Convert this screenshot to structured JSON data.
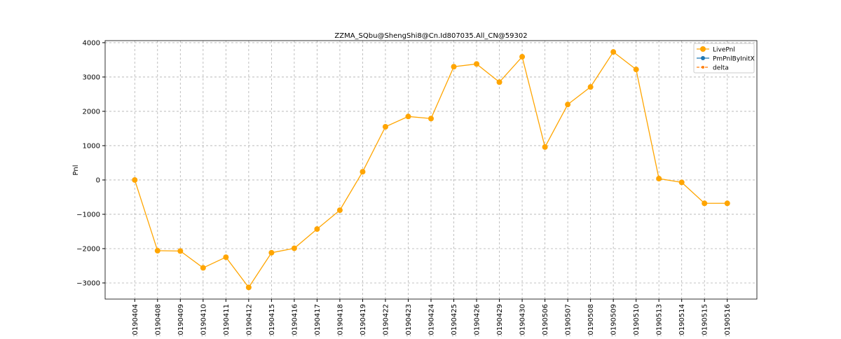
{
  "chart_data": {
    "type": "line",
    "title": "ZZMA_SQbu@ShengShi8@Cn.Id807035.All_CN@59302",
    "y_label": "Pnl",
    "categories": [
      "20190404",
      "20190408",
      "20190409",
      "20190410",
      "20190411",
      "20190412",
      "20190415",
      "20190416",
      "20190417",
      "20190418",
      "20190419",
      "20190422",
      "20190423",
      "20190424",
      "20190425",
      "20190426",
      "20190429",
      "20190430",
      "20190506",
      "20190507",
      "20190508",
      "20190509",
      "20190510",
      "20190513",
      "20190514",
      "20190515",
      "20190516"
    ],
    "series": [
      {
        "name": "LivePnl",
        "color": "#ffa500",
        "values": [
          0,
          -2060,
          -2070,
          -2560,
          -2250,
          -3130,
          -2120,
          -1990,
          -1430,
          -880,
          240,
          1550,
          1850,
          1790,
          3300,
          3380,
          2850,
          3590,
          960,
          2200,
          2710,
          3730,
          3220,
          40,
          -70,
          -680,
          -680
        ]
      },
      {
        "name": "PmPnlByInitX",
        "color": "#1f77b4",
        "values": [
          null,
          null,
          null,
          null,
          null,
          null,
          null,
          null,
          null,
          null,
          null,
          null,
          null,
          null,
          null,
          null,
          null,
          null,
          null,
          null,
          null,
          null,
          null,
          null,
          null,
          null,
          null
        ]
      },
      {
        "name": "delta",
        "color": "#ff7f0e",
        "values": [
          null,
          null,
          null,
          null,
          null,
          null,
          null,
          null,
          null,
          null,
          null,
          null,
          null,
          null,
          null,
          null,
          null,
          null,
          null,
          null,
          null,
          null,
          null,
          null,
          null,
          null,
          null
        ]
      }
    ],
    "ylim": [
      -3470,
      4060
    ],
    "yticks": [
      {
        "value": -3000,
        "label": "−3000"
      },
      {
        "value": -2000,
        "label": "−2000"
      },
      {
        "value": -1000,
        "label": "−1000"
      },
      0,
      1000,
      2000,
      3000,
      4000
    ],
    "grid": true,
    "legend": "upper right"
  }
}
